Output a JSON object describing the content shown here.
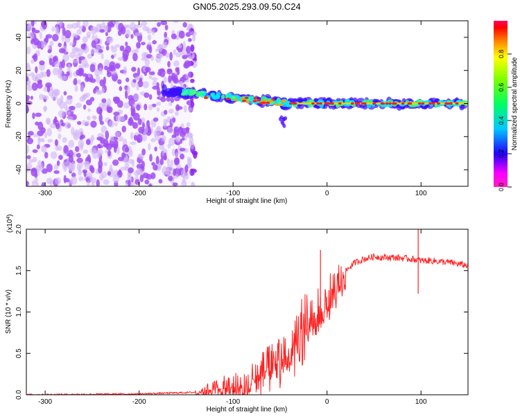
{
  "title": "GN05.2025.293.09.50.C24",
  "chart_data": [
    {
      "type": "heatmap",
      "title": "GN05.2025.293.09.50.C24",
      "xlabel": "Height of straight line (km)",
      "ylabel": "Frequency (Hz)",
      "xlim": [
        -320,
        150
      ],
      "ylim": [
        -50,
        50
      ],
      "x_ticks": [
        -300,
        -200,
        -100,
        0,
        100
      ],
      "y_ticks": [
        -40,
        -20,
        0,
        20,
        40
      ],
      "colorbar": {
        "label": "Normalized spectral amplitude",
        "range": [
          0,
          1
        ],
        "ticks": [
          0.0,
          0.2,
          0.4,
          0.6,
          0.8
        ],
        "colors": [
          "#ffffff",
          "#8000ff",
          "#0000ff",
          "#00c0ff",
          "#00ff80",
          "#80ff00",
          "#ffff00",
          "#ff8000",
          "#ff0000",
          "#ff0080"
        ]
      },
      "features": {
        "noise_region_x": [
          -320,
          -145
        ],
        "signal_line_freq": 0,
        "signal_start_x": -175,
        "peak_region_x": [
          -40,
          150
        ]
      }
    },
    {
      "type": "line",
      "xlabel": "Height of straight line (km)",
      "ylabel": "SNR (10 * v/v)",
      "y_multiplier": "(x10^4)",
      "xlim": [
        -320,
        150
      ],
      "ylim": [
        0,
        2.0
      ],
      "x_ticks": [
        -300,
        -200,
        -100,
        0,
        100
      ],
      "y_ticks": [
        0.0,
        0.5,
        1.0,
        1.5,
        2.0
      ],
      "series_color": "#ff2020",
      "x": [
        -320,
        -200,
        -140,
        -130,
        -120,
        -110,
        -100,
        -90,
        -80,
        -70,
        -60,
        -50,
        -40,
        -30,
        -20,
        -10,
        0,
        10,
        20,
        30,
        40,
        50,
        60,
        70,
        80,
        90,
        97,
        100,
        110,
        120,
        130,
        140,
        150
      ],
      "values": [
        0.0,
        0.01,
        0.03,
        0.06,
        0.08,
        0.1,
        0.12,
        0.15,
        0.2,
        0.28,
        0.35,
        0.45,
        0.55,
        0.75,
        0.95,
        1.05,
        1.15,
        1.35,
        1.5,
        1.6,
        1.64,
        1.67,
        1.66,
        1.66,
        1.65,
        1.64,
        1.63,
        1.62,
        1.62,
        1.61,
        1.6,
        1.58,
        1.56
      ],
      "spikes": [
        {
          "x": 97,
          "values": [
            2.05,
            1.22
          ]
        },
        {
          "x": -7,
          "values": [
            1.75
          ]
        }
      ]
    }
  ]
}
